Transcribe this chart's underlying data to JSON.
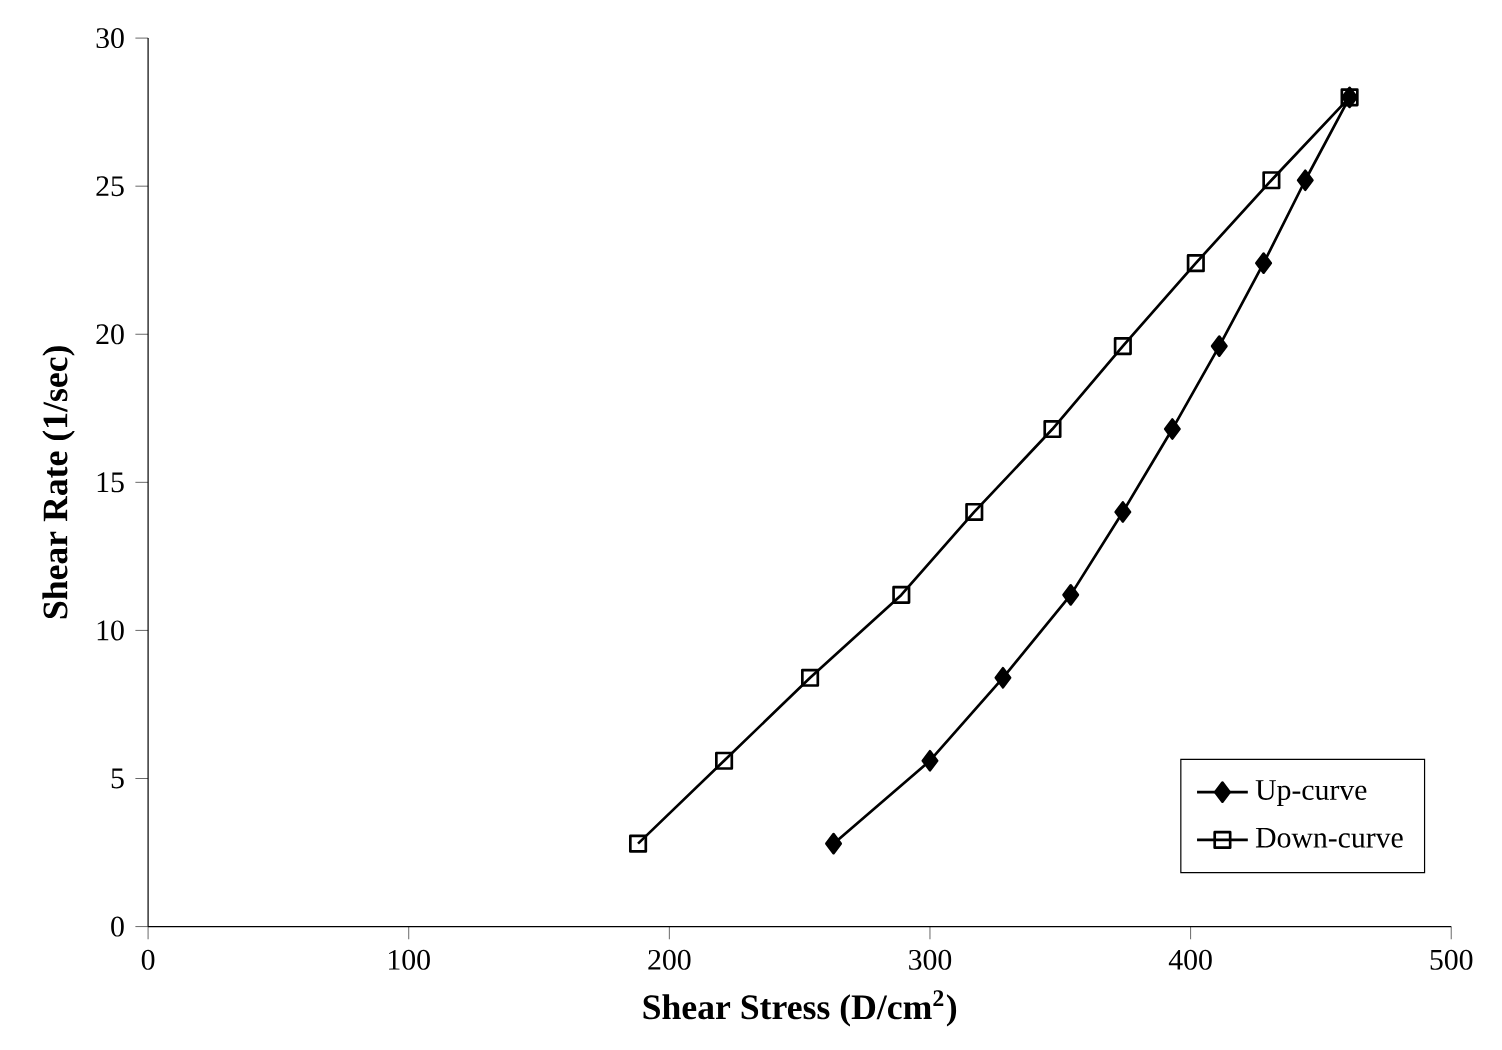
{
  "chart_data": {
    "type": "line",
    "xlabel": "Shear Stress (D/cm$^{2}$)",
    "ylabel": "Shear Rate (1/sec)",
    "xlim": [
      0,
      500
    ],
    "xticks": [
      0,
      100,
      200,
      300,
      400,
      500
    ],
    "ylim": [
      0,
      30
    ],
    "yticks": [
      0,
      5,
      10,
      15,
      20,
      25,
      30
    ],
    "grid": false,
    "legend": "bottom right",
    "series": [
      {
        "name": "Up-curve",
        "color": "#000000",
        "marker": "diamond",
        "x": [
          263,
          300,
          328,
          354,
          374,
          393,
          411,
          428,
          444,
          461
        ],
        "values": [
          2.8,
          5.6,
          8.4,
          11.2,
          14.0,
          16.8,
          19.6,
          22.4,
          25.2,
          28.0
        ]
      },
      {
        "name": "Down-curve",
        "color": "#000000",
        "marker": "square",
        "x": [
          188,
          221,
          254,
          289,
          317,
          347,
          374,
          402,
          431,
          461
        ],
        "values": [
          2.8,
          5.6,
          8.4,
          11.2,
          14.0,
          16.8,
          19.6,
          22.4,
          25.2,
          28.0
        ]
      }
    ]
  }
}
